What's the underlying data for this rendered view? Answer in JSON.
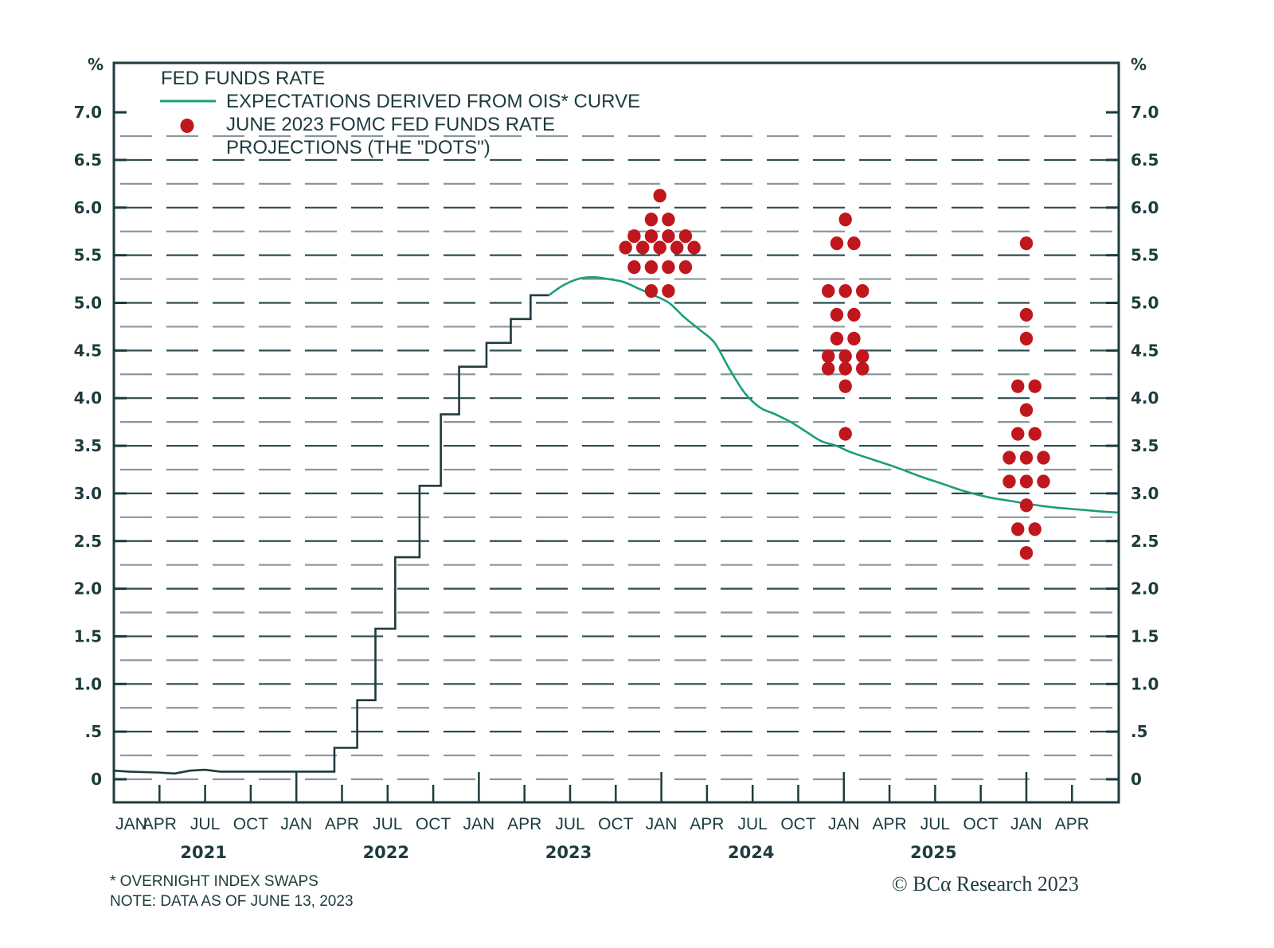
{
  "chart_data": {
    "type": "line",
    "title": "",
    "ylabel_left": "%",
    "ylabel_right": "%",
    "ylim": [
      0,
      7.75
    ],
    "y_ticks": [
      0,
      0.5,
      1.0,
      1.5,
      2.0,
      2.5,
      3.0,
      3.5,
      4.0,
      4.5,
      5.0,
      5.5,
      6.0,
      6.5,
      7.0
    ],
    "y_tick_labels": [
      "0",
      ".5",
      "1.0",
      "1.5",
      "2.0",
      "2.5",
      "3.0",
      "3.5",
      "4.0",
      "4.5",
      "5.0",
      "5.5",
      "6.0",
      "6.5",
      "7.0"
    ],
    "y_grid_step": 0.25,
    "grid": true,
    "x_range_months": [
      0,
      66
    ],
    "x_note": "x values are months since JAN 2021",
    "month_ticks": [
      {
        "m": 0,
        "label": "JAN"
      },
      {
        "m": 3,
        "label": "APR"
      },
      {
        "m": 6,
        "label": "JUL"
      },
      {
        "m": 9,
        "label": "OCT"
      },
      {
        "m": 12,
        "label": "JAN"
      },
      {
        "m": 15,
        "label": "APR"
      },
      {
        "m": 18,
        "label": "JUL"
      },
      {
        "m": 21,
        "label": "OCT"
      },
      {
        "m": 24,
        "label": "JAN"
      },
      {
        "m": 27,
        "label": "APR"
      },
      {
        "m": 30,
        "label": "JUL"
      },
      {
        "m": 33,
        "label": "OCT"
      },
      {
        "m": 36,
        "label": "JAN"
      },
      {
        "m": 39,
        "label": "APR"
      },
      {
        "m": 42,
        "label": "JUL"
      },
      {
        "m": 45,
        "label": "OCT"
      },
      {
        "m": 48,
        "label": "JAN"
      },
      {
        "m": 51,
        "label": "APR"
      },
      {
        "m": 54,
        "label": "JUL"
      },
      {
        "m": 57,
        "label": "OCT"
      },
      {
        "m": 60,
        "label": "JAN"
      },
      {
        "m": 63,
        "label": "APR"
      }
    ],
    "years": [
      {
        "m": 6,
        "label": "2021"
      },
      {
        "m": 18,
        "label": "2022"
      },
      {
        "m": 30,
        "label": "2023"
      },
      {
        "m": 42,
        "label": "2024"
      },
      {
        "m": 54,
        "label": "2025"
      }
    ],
    "legend": {
      "placement": "top-left",
      "entries": [
        {
          "key": "fed_funds",
          "label": "FED FUNDS RATE",
          "marker": "none"
        },
        {
          "key": "ois",
          "label": "EXPECTATIONS DERIVED FROM OIS* CURVE",
          "marker": "line"
        },
        {
          "key": "dots",
          "label_lines": [
            "JUNE 2023 FOMC FED FUNDS RATE",
            "PROJECTIONS (THE \"DOTS\")"
          ],
          "marker": "dot"
        }
      ]
    },
    "colors": {
      "fed_funds": "#1d3b3e",
      "ois": "#1a9e7a",
      "dots": "#c0161d",
      "axis": "#1d3b3e",
      "grid_dark": "#2f4d50",
      "grid_light": "#8a9799"
    },
    "series": [
      {
        "name": "FED FUNDS RATE",
        "style": "step",
        "points": [
          [
            0,
            0.09
          ],
          [
            1,
            0.08
          ],
          [
            3,
            0.07
          ],
          [
            4,
            0.06
          ],
          [
            5,
            0.09
          ],
          [
            6,
            0.1
          ],
          [
            7,
            0.08
          ],
          [
            9,
            0.08
          ],
          [
            12,
            0.08
          ],
          [
            14.5,
            0.08
          ],
          [
            14.5,
            0.33
          ],
          [
            16,
            0.33
          ],
          [
            16,
            0.83
          ],
          [
            17.2,
            0.83
          ],
          [
            17.2,
            1.58
          ],
          [
            18.5,
            1.58
          ],
          [
            18.5,
            2.33
          ],
          [
            20.1,
            2.33
          ],
          [
            20.1,
            3.08
          ],
          [
            21.5,
            3.08
          ],
          [
            21.5,
            3.83
          ],
          [
            22.7,
            3.83
          ],
          [
            22.7,
            4.33
          ],
          [
            24.5,
            4.33
          ],
          [
            24.5,
            4.58
          ],
          [
            26.1,
            4.58
          ],
          [
            26.1,
            4.83
          ],
          [
            27.4,
            4.83
          ],
          [
            27.4,
            5.08
          ],
          [
            28.6,
            5.08
          ]
        ]
      },
      {
        "name": "EXPECTATIONS DERIVED FROM OIS* CURVE",
        "style": "smooth",
        "points": [
          [
            28.6,
            5.08
          ],
          [
            29.5,
            5.18
          ],
          [
            30.5,
            5.25
          ],
          [
            31.5,
            5.27
          ],
          [
            32.5,
            5.25
          ],
          [
            33.5,
            5.22
          ],
          [
            34.5,
            5.15
          ],
          [
            35.5,
            5.08
          ],
          [
            36.5,
            5.0
          ],
          [
            37.5,
            4.85
          ],
          [
            38.5,
            4.72
          ],
          [
            39.5,
            4.58
          ],
          [
            40.5,
            4.3
          ],
          [
            41.5,
            4.05
          ],
          [
            42.5,
            3.9
          ],
          [
            43.5,
            3.83
          ],
          [
            44.5,
            3.75
          ],
          [
            45.5,
            3.65
          ],
          [
            46.5,
            3.55
          ],
          [
            47.5,
            3.5
          ],
          [
            48.5,
            3.43
          ],
          [
            50,
            3.35
          ],
          [
            51.5,
            3.27
          ],
          [
            53,
            3.18
          ],
          [
            54.5,
            3.1
          ],
          [
            56,
            3.02
          ],
          [
            57.5,
            2.96
          ],
          [
            59,
            2.92
          ],
          [
            60.5,
            2.88
          ],
          [
            62,
            2.85
          ],
          [
            63.5,
            2.83
          ],
          [
            65,
            2.81
          ],
          [
            66,
            2.8
          ]
        ]
      }
    ],
    "dots": [
      {
        "year": "2023",
        "m": 35.9,
        "groups": [
          {
            "value": 6.125,
            "count": 1
          },
          {
            "value": 5.875,
            "count": 2
          },
          {
            "value": 5.7,
            "count": 4
          },
          {
            "value": 5.58,
            "count": 5
          },
          {
            "value": 5.375,
            "count": 4
          },
          {
            "value": 5.125,
            "count": 2
          }
        ]
      },
      {
        "year": "2024",
        "m": 48.1,
        "groups": [
          {
            "value": 5.875,
            "count": 1
          },
          {
            "value": 5.625,
            "count": 2
          },
          {
            "value": 5.125,
            "count": 3
          },
          {
            "value": 4.875,
            "count": 2
          },
          {
            "value": 4.625,
            "count": 2
          },
          {
            "value": 4.44,
            "count": 3
          },
          {
            "value": 4.31,
            "count": 3
          },
          {
            "value": 4.125,
            "count": 1
          },
          {
            "value": 3.625,
            "count": 1
          }
        ]
      },
      {
        "year": "2025",
        "m": 60.0,
        "groups": [
          {
            "value": 5.625,
            "count": 1
          },
          {
            "value": 4.875,
            "count": 1
          },
          {
            "value": 4.625,
            "count": 1
          },
          {
            "value": 4.125,
            "count": 2
          },
          {
            "value": 3.875,
            "count": 1
          },
          {
            "value": 3.625,
            "count": 2
          },
          {
            "value": 3.375,
            "count": 3
          },
          {
            "value": 3.125,
            "count": 3
          },
          {
            "value": 2.875,
            "count": 1
          },
          {
            "value": 2.625,
            "count": 2
          },
          {
            "value": 2.375,
            "count": 1
          }
        ]
      }
    ]
  },
  "footnotes": {
    "line1": "* OVERNIGHT INDEX SWAPS",
    "line2": "NOTE: DATA AS OF JUNE 13, 2023"
  },
  "copyright": "© BCα Research 2023"
}
